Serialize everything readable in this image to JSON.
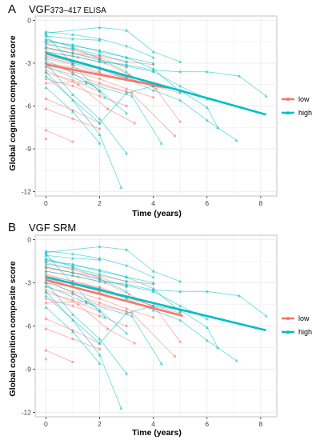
{
  "colors": {
    "low": "#F8766D",
    "high": "#00BFC4",
    "panel_bg": "#FFFFFF",
    "grid": "#EBEBEB",
    "border": "#B3B3B3"
  },
  "chart_data": [
    {
      "type": "line",
      "panel_label": "A",
      "title_main": "VGF",
      "title_sub": "373–417 ELISA",
      "xlabel": "Time (years)",
      "ylabel": "Global cognition composite score",
      "xlim": [
        -0.4,
        8.6
      ],
      "ylim": [
        -12.3,
        0.3
      ],
      "x_ticks": [
        0,
        2,
        4,
        6,
        8
      ],
      "y_ticks": [
        0,
        -3,
        -6,
        -9,
        -12
      ],
      "grid": true,
      "legend_position": "right",
      "series": [
        {
          "name": "low",
          "color_key": "low",
          "role": "fit",
          "x": [
            0,
            4.5
          ],
          "y": [
            -3.1,
            -4.7
          ]
        },
        {
          "name": "high",
          "color_key": "high",
          "role": "fit",
          "x": [
            0,
            8.2
          ],
          "y": [
            -2.3,
            -6.6
          ]
        }
      ],
      "individual_trajectories": [
        {
          "group": "low",
          "x": [
            0,
            1,
            2,
            3
          ],
          "y": [
            -1.6,
            -2.1,
            -2.6,
            -3.3
          ]
        },
        {
          "group": "low",
          "x": [
            0,
            1,
            2,
            3,
            4
          ],
          "y": [
            -2.0,
            -2.3,
            -2.5,
            -2.9,
            -3.1
          ]
        },
        {
          "group": "low",
          "x": [
            0,
            1,
            2,
            3
          ],
          "y": [
            -2.4,
            -2.9,
            -3.3,
            -4.0
          ]
        },
        {
          "group": "low",
          "x": [
            0,
            1,
            2
          ],
          "y": [
            -2.7,
            -3.1,
            -3.6
          ]
        },
        {
          "group": "low",
          "x": [
            0,
            1,
            2,
            3,
            4
          ],
          "y": [
            -3.0,
            -3.6,
            -4.1,
            -4.8,
            -5.4
          ]
        },
        {
          "group": "low",
          "x": [
            0,
            1,
            2,
            3
          ],
          "y": [
            -3.3,
            -3.8,
            -4.4,
            -5.0
          ]
        },
        {
          "group": "low",
          "x": [
            0,
            1,
            2
          ],
          "y": [
            -3.7,
            -4.2,
            -5.0
          ]
        },
        {
          "group": "low",
          "x": [
            0,
            1,
            2,
            3,
            4,
            5
          ],
          "y": [
            -2.5,
            -2.9,
            -3.4,
            -4.0,
            -4.6,
            -5.1
          ]
        },
        {
          "group": "low",
          "x": [
            0,
            1,
            2,
            3
          ],
          "y": [
            -4.1,
            -4.6,
            -5.3,
            -6.0
          ]
        },
        {
          "group": "low",
          "x": [
            0,
            1,
            2
          ],
          "y": [
            -5.5,
            -6.3,
            -7.2
          ]
        },
        {
          "group": "low",
          "x": [
            0,
            1
          ],
          "y": [
            -7.7,
            -8.5
          ]
        },
        {
          "group": "low",
          "x": [
            0,
            1.2,
            2.3,
            3.3
          ],
          "y": [
            -3.5,
            -4.5,
            -6.2,
            -7.2
          ]
        },
        {
          "group": "low",
          "x": [
            0,
            1.2,
            2.2,
            3.1,
            4.1,
            5.0
          ],
          "y": [
            -2.2,
            -2.6,
            -3.0,
            -3.8,
            -4.8,
            -7.1
          ]
        },
        {
          "group": "low",
          "x": [
            0,
            1,
            2
          ],
          "y": [
            -1.9,
            -2.3,
            -2.7
          ]
        },
        {
          "group": "low",
          "x": [
            0,
            1,
            2,
            3,
            4
          ],
          "y": [
            -3.0,
            -3.3,
            -3.7,
            -4.0,
            -4.6
          ]
        },
        {
          "group": "low",
          "x": [
            0,
            1,
            2
          ],
          "y": [
            -6.2,
            -6.9,
            -7.6
          ]
        },
        {
          "group": "low",
          "x": [
            0,
            1.5,
            3.2,
            4.8
          ],
          "y": [
            -4.4,
            -4.3,
            -5.1,
            -8.1
          ]
        },
        {
          "group": "low",
          "x": [
            0
          ],
          "y": [
            -8.3
          ]
        },
        {
          "group": "high",
          "x": [
            0,
            1,
            2,
            3,
            4
          ],
          "y": [
            -0.8,
            -1.0,
            -1.3,
            -1.8,
            -2.6
          ]
        },
        {
          "group": "high",
          "x": [
            0,
            1,
            2
          ],
          "y": [
            -1.1,
            -1.3,
            -1.4
          ]
        },
        {
          "group": "high",
          "x": [
            0,
            2,
            3,
            4,
            5
          ],
          "y": [
            -0.9,
            -0.5,
            -0.7,
            -2.2,
            -2.9
          ]
        },
        {
          "group": "high",
          "x": [
            0,
            1,
            2,
            3,
            4
          ],
          "y": [
            -1.4,
            -1.8,
            -2.1,
            -2.6,
            -3.0
          ]
        },
        {
          "group": "high",
          "x": [
            0,
            1,
            2,
            3
          ],
          "y": [
            -1.7,
            -2.0,
            -2.4,
            -2.9
          ]
        },
        {
          "group": "high",
          "x": [
            0,
            1,
            2,
            3,
            4,
            5,
            6
          ],
          "y": [
            -1.9,
            -2.3,
            -2.8,
            -3.2,
            -3.6,
            -4.6,
            -5.5
          ]
        },
        {
          "group": "high",
          "x": [
            0,
            1,
            2,
            3,
            4,
            5,
            6,
            7.2,
            8.2
          ],
          "y": [
            -2.2,
            -2.5,
            -2.9,
            -3.1,
            -3.5,
            -3.6,
            -3.6,
            -3.9,
            -5.3
          ]
        },
        {
          "group": "high",
          "x": [
            0,
            1,
            2,
            3,
            4,
            5,
            6,
            7.1
          ],
          "y": [
            -2.6,
            -3.0,
            -3.4,
            -4.1,
            -4.9,
            -5.6,
            -7.0,
            -8.4
          ]
        },
        {
          "group": "high",
          "x": [
            0,
            1,
            2,
            3
          ],
          "y": [
            -2.8,
            -3.7,
            -4.9,
            -6.5
          ]
        },
        {
          "group": "high",
          "x": [
            0,
            1,
            2,
            3
          ],
          "y": [
            -3.0,
            -5.2,
            -6.9,
            -9.3
          ]
        },
        {
          "group": "high",
          "x": [
            0,
            1,
            2,
            2.8
          ],
          "y": [
            -3.6,
            -5.6,
            -8.0,
            -11.7
          ]
        },
        {
          "group": "high",
          "x": [
            0,
            2,
            3,
            4,
            5,
            6,
            6.4
          ],
          "y": [
            -3.9,
            -7.2,
            -5.1,
            -4.6,
            -4.9,
            -6.1,
            -7.5
          ]
        },
        {
          "group": "high",
          "x": [
            0,
            1,
            2
          ],
          "y": [
            -4.7,
            -6.4,
            -8.6
          ]
        },
        {
          "group": "high",
          "x": [
            0,
            1,
            2.2
          ],
          "y": [
            -1.0,
            -3.1,
            -5.4
          ]
        },
        {
          "group": "high",
          "x": [
            0,
            1.5,
            3.2,
            4.3
          ],
          "y": [
            -3.2,
            -4.4,
            -5.3,
            -8.6
          ]
        },
        {
          "group": "high",
          "x": [
            0,
            1,
            2,
            3,
            4,
            5
          ],
          "y": [
            -1.5,
            -1.7,
            -2.2,
            -2.6,
            -3.4,
            -5.0
          ]
        },
        {
          "group": "high",
          "x": [
            0,
            1,
            2,
            3
          ],
          "y": [
            -1.3,
            -1.9,
            -2.7,
            -3.6
          ]
        }
      ]
    },
    {
      "type": "line",
      "panel_label": "B",
      "title_main": "VGF SRM",
      "title_sub": "",
      "xlabel": "Time (years)",
      "ylabel": "Global cognition composite score",
      "xlim": [
        -0.4,
        8.6
      ],
      "ylim": [
        -12.3,
        0.3
      ],
      "x_ticks": [
        0,
        2,
        4,
        6,
        8
      ],
      "y_ticks": [
        0,
        -3,
        -6,
        -9,
        -12
      ],
      "grid": true,
      "legend_position": "right",
      "series": [
        {
          "name": "low",
          "color_key": "low",
          "role": "fit",
          "x": [
            0,
            5.1
          ],
          "y": [
            -2.8,
            -5.3
          ]
        },
        {
          "name": "high",
          "color_key": "high",
          "role": "fit",
          "x": [
            0,
            8.2
          ],
          "y": [
            -2.6,
            -6.3
          ]
        }
      ],
      "individual_trajectories": [
        {
          "group": "low",
          "x": [
            0,
            1,
            2,
            3
          ],
          "y": [
            -1.6,
            -2.1,
            -2.6,
            -3.3
          ]
        },
        {
          "group": "low",
          "x": [
            0,
            1,
            2,
            3,
            4
          ],
          "y": [
            -2.0,
            -2.3,
            -2.5,
            -2.9,
            -3.1
          ]
        },
        {
          "group": "low",
          "x": [
            0,
            1,
            2,
            3
          ],
          "y": [
            -2.4,
            -2.9,
            -3.3,
            -4.0
          ]
        },
        {
          "group": "low",
          "x": [
            0,
            1,
            2
          ],
          "y": [
            -2.7,
            -3.1,
            -3.6
          ]
        },
        {
          "group": "low",
          "x": [
            0,
            1,
            2,
            3,
            4
          ],
          "y": [
            -3.0,
            -3.6,
            -4.1,
            -4.8,
            -5.4
          ]
        },
        {
          "group": "low",
          "x": [
            0,
            1,
            2,
            3
          ],
          "y": [
            -3.3,
            -3.8,
            -4.4,
            -5.0
          ]
        },
        {
          "group": "low",
          "x": [
            0,
            1,
            2
          ],
          "y": [
            -3.7,
            -4.2,
            -5.0
          ]
        },
        {
          "group": "low",
          "x": [
            0,
            1,
            2,
            3,
            4,
            5
          ],
          "y": [
            -2.5,
            -2.9,
            -3.4,
            -4.0,
            -4.6,
            -5.1
          ]
        },
        {
          "group": "low",
          "x": [
            0,
            1,
            2,
            3
          ],
          "y": [
            -4.1,
            -4.6,
            -5.3,
            -6.0
          ]
        },
        {
          "group": "low",
          "x": [
            0,
            1,
            2
          ],
          "y": [
            -5.5,
            -6.3,
            -7.2
          ]
        },
        {
          "group": "low",
          "x": [
            0,
            1
          ],
          "y": [
            -7.7,
            -8.5
          ]
        },
        {
          "group": "low",
          "x": [
            0,
            1.2,
            2.3,
            3.3
          ],
          "y": [
            -3.5,
            -4.5,
            -6.2,
            -7.2
          ]
        },
        {
          "group": "low",
          "x": [
            0,
            1.2,
            2.2,
            3.1,
            4.1,
            5.0
          ],
          "y": [
            -2.2,
            -2.6,
            -3.0,
            -3.8,
            -4.8,
            -7.1
          ]
        },
        {
          "group": "low",
          "x": [
            0,
            1,
            2
          ],
          "y": [
            -1.9,
            -2.3,
            -2.7
          ]
        },
        {
          "group": "low",
          "x": [
            0,
            1,
            2,
            3,
            4
          ],
          "y": [
            -3.0,
            -3.3,
            -3.7,
            -4.0,
            -4.6
          ]
        },
        {
          "group": "low",
          "x": [
            0,
            1,
            2
          ],
          "y": [
            -6.2,
            -6.9,
            -7.6
          ]
        },
        {
          "group": "low",
          "x": [
            0,
            1.5,
            3.2,
            4.8
          ],
          "y": [
            -4.4,
            -4.3,
            -5.1,
            -8.1
          ]
        },
        {
          "group": "low",
          "x": [
            0
          ],
          "y": [
            -8.3
          ]
        },
        {
          "group": "high",
          "x": [
            0,
            1,
            2,
            3,
            4
          ],
          "y": [
            -0.8,
            -1.0,
            -1.3,
            -1.8,
            -2.6
          ]
        },
        {
          "group": "high",
          "x": [
            0,
            1,
            2
          ],
          "y": [
            -1.1,
            -1.3,
            -1.4
          ]
        },
        {
          "group": "high",
          "x": [
            0,
            2,
            3,
            4,
            5
          ],
          "y": [
            -0.9,
            -0.5,
            -0.7,
            -2.2,
            -2.9
          ]
        },
        {
          "group": "high",
          "x": [
            0,
            1,
            2,
            3,
            4
          ],
          "y": [
            -1.4,
            -1.8,
            -2.1,
            -2.6,
            -3.0
          ]
        },
        {
          "group": "high",
          "x": [
            0,
            1,
            2,
            3
          ],
          "y": [
            -1.7,
            -2.0,
            -2.4,
            -2.9
          ]
        },
        {
          "group": "high",
          "x": [
            0,
            1,
            2,
            3,
            4,
            5,
            6
          ],
          "y": [
            -1.9,
            -2.3,
            -2.8,
            -3.2,
            -3.6,
            -4.6,
            -5.5
          ]
        },
        {
          "group": "high",
          "x": [
            0,
            1,
            2,
            3,
            4,
            5,
            6,
            7.2,
            8.2
          ],
          "y": [
            -2.2,
            -2.5,
            -2.9,
            -3.1,
            -3.5,
            -3.6,
            -3.6,
            -3.9,
            -5.3
          ]
        },
        {
          "group": "high",
          "x": [
            0,
            1,
            2,
            3,
            4,
            5,
            6,
            7.1
          ],
          "y": [
            -2.6,
            -3.0,
            -3.4,
            -4.1,
            -4.9,
            -5.6,
            -7.0,
            -8.4
          ]
        },
        {
          "group": "high",
          "x": [
            0,
            1,
            2,
            3
          ],
          "y": [
            -2.8,
            -3.7,
            -4.9,
            -6.5
          ]
        },
        {
          "group": "high",
          "x": [
            0,
            1,
            2,
            3
          ],
          "y": [
            -3.0,
            -5.2,
            -6.9,
            -9.3
          ]
        },
        {
          "group": "high",
          "x": [
            0,
            1,
            2,
            2.8
          ],
          "y": [
            -3.6,
            -5.6,
            -8.0,
            -11.7
          ]
        },
        {
          "group": "high",
          "x": [
            0,
            2,
            3,
            4,
            5,
            6,
            6.4
          ],
          "y": [
            -3.9,
            -7.2,
            -5.1,
            -4.6,
            -4.9,
            -6.1,
            -7.5
          ]
        },
        {
          "group": "high",
          "x": [
            0,
            1,
            2
          ],
          "y": [
            -4.7,
            -6.4,
            -8.6
          ]
        },
        {
          "group": "high",
          "x": [
            0,
            1,
            2.2
          ],
          "y": [
            -1.0,
            -3.1,
            -5.4
          ]
        },
        {
          "group": "high",
          "x": [
            0,
            1.5,
            3.2,
            4.3
          ],
          "y": [
            -3.2,
            -4.4,
            -5.3,
            -8.6
          ]
        },
        {
          "group": "high",
          "x": [
            0,
            1,
            2,
            3,
            4,
            5
          ],
          "y": [
            -1.5,
            -1.7,
            -2.2,
            -2.6,
            -3.4,
            -5.0
          ]
        },
        {
          "group": "high",
          "x": [
            0,
            1,
            2,
            3
          ],
          "y": [
            -1.3,
            -1.9,
            -2.7,
            -3.6
          ]
        }
      ]
    }
  ]
}
